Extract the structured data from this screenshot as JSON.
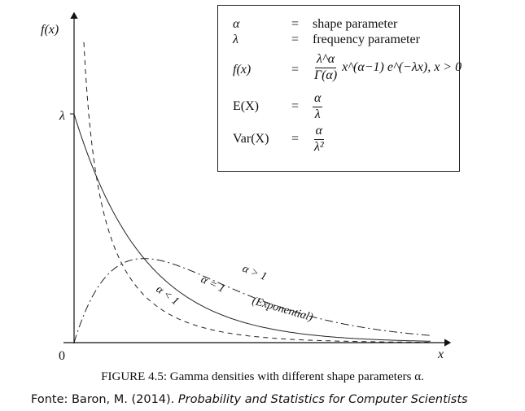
{
  "chart_data": {
    "type": "line",
    "title": "",
    "xlabel": "x",
    "ylabel": "f(x)",
    "y_tick_labels": [
      "λ",
      "0"
    ],
    "series": [
      {
        "name": "α = 1",
        "note": "(Exponential)",
        "style": "solid",
        "alpha": 1
      },
      {
        "name": "α < 1",
        "style": "dashed",
        "alpha": 0.5
      },
      {
        "name": "α > 1",
        "style": "dash-dot",
        "alpha": 2
      }
    ]
  },
  "legend": {
    "rows": [
      {
        "lhs": "α",
        "eq": "=",
        "rhs": "shape parameter"
      },
      {
        "lhs": "λ",
        "eq": "=",
        "rhs": "frequency parameter"
      },
      {
        "lhs": "f(x)",
        "eq": "=",
        "num": "λ^α",
        "den": "Γ(α)",
        "tail": "x^(α−1) e^(−λx),   x > 0"
      },
      {
        "lhs": "E(X)",
        "eq": "=",
        "num": "α",
        "den": "λ"
      },
      {
        "lhs": "Var(X)",
        "eq": "=",
        "num": "α",
        "den": "λ²"
      }
    ]
  },
  "caption": "FIGURE 4.5: Gamma densities with different shape parameters α.",
  "source_prefix": "Fonte: Baron, M. (2014). ",
  "source_title": "Probability and Statistics for Computer Scientists"
}
